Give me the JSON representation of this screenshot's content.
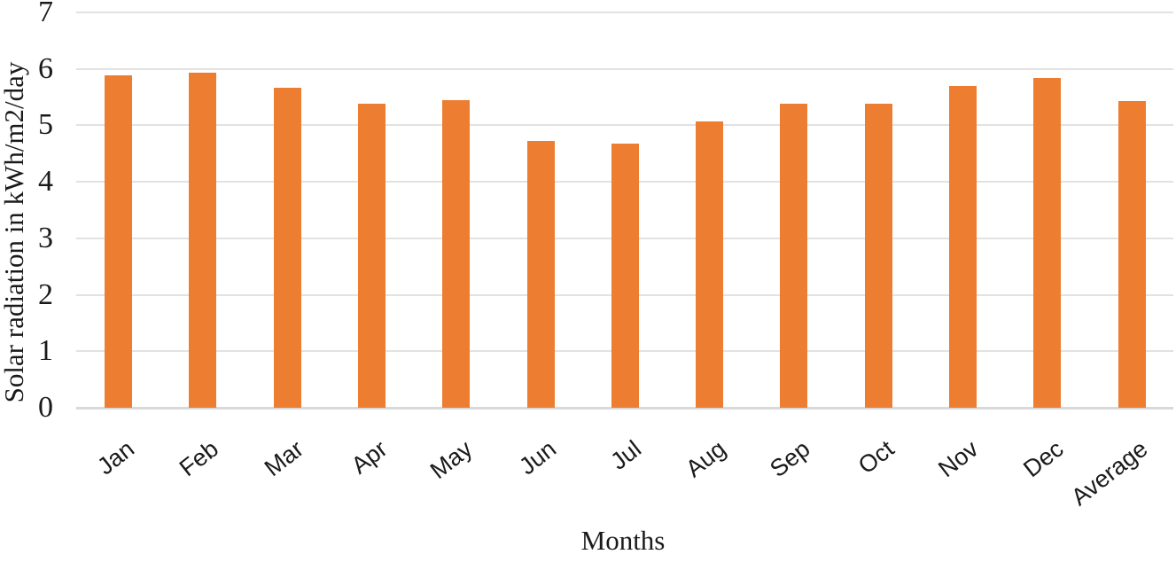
{
  "chart_data": {
    "type": "bar",
    "title": "",
    "categories": [
      "Jan",
      "Feb",
      "Mar",
      "Apr",
      "May",
      "Jun",
      "Jul",
      "Aug",
      "Sep",
      "Oct",
      "Nov",
      "Dec",
      "Average"
    ],
    "values": [
      5.89,
      5.94,
      5.66,
      5.38,
      5.44,
      4.73,
      4.67,
      5.07,
      5.39,
      5.39,
      5.7,
      5.84,
      5.43
    ],
    "xlabel": "Months",
    "ylabel": "Solar radiation in kWh/m2/day",
    "ylim": [
      0,
      7
    ],
    "yticks": [
      0,
      1,
      2,
      3,
      4,
      5,
      6,
      7
    ],
    "grid": true,
    "legend": "none",
    "bar_color": "#ed7d31",
    "gridline_color": "#e2e2e2",
    "axis_line_color": "#d9d9d9",
    "text_color": "#1a1a1a"
  }
}
